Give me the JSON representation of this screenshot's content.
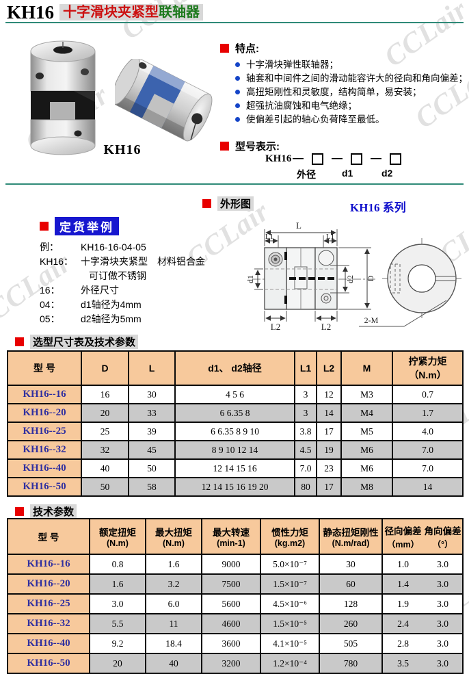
{
  "header": {
    "model": "KH16",
    "subtitle_red": "十字滑块夹紧型",
    "subtitle_green": "联轴器"
  },
  "watermark": {
    "text": "CCLair"
  },
  "product": {
    "caption": "KH16"
  },
  "features": {
    "heading": "特点:",
    "items": [
      "十字滑块弹性联轴器；",
      "轴套和中间件之间的滑动能容许大的径向和角向偏差；",
      "高扭矩刚性和灵敏度，结构简单，易安装；",
      "超强抗油腐蚀和电气绝缘；",
      "使偏差引起的轴心负荷降至最低。"
    ]
  },
  "model_designation": {
    "heading": "型号表示:",
    "prefix": "KH16",
    "dash": "—",
    "slots": [
      "外径",
      "d1",
      "d2"
    ]
  },
  "outline": {
    "heading": "外形图",
    "series": "KH16 系列",
    "labels": {
      "L": "L",
      "L1": "L1",
      "L2": "L2",
      "d1": "d1",
      "d2": "d2",
      "D": "D",
      "M": "2-M"
    }
  },
  "ordering": {
    "heading": "定货举例",
    "rows": [
      {
        "label": "例：",
        "value": "KH16-16-04-05"
      },
      {
        "label": "KH16：",
        "value": "十字滑块夹紧型　材料铝合金"
      },
      {
        "label": "",
        "value": "可订做不锈钢"
      },
      {
        "label": "16：",
        "value": "外径尺寸"
      },
      {
        "label": "04：",
        "value": "d1轴径为4mm"
      },
      {
        "label": "05：",
        "value": "d2轴径为5mm"
      }
    ]
  },
  "dimension_table": {
    "heading": "选型尺寸表及技术参数",
    "columns": [
      "型 号",
      "D",
      "L",
      "d1、 d2轴径",
      "L1",
      "L2",
      "M",
      "拧紧力矩（N.m）"
    ],
    "rows": [
      [
        "KH16--16",
        "16",
        "30",
        "4 5 6",
        "3",
        "12",
        "M3",
        "0.7"
      ],
      [
        "KH16--20",
        "20",
        "33",
        "6 6.35 8",
        "3",
        "14",
        "M4",
        "1.7"
      ],
      [
        "KH16--25",
        "25",
        "39",
        "6 6.35 8 9 10",
        "3.8",
        "17",
        "M5",
        "4.0"
      ],
      [
        "KH16--32",
        "32",
        "45",
        "8 9 10 12 14",
        "4.5",
        "19",
        "M6",
        "7.0"
      ],
      [
        "KH16--40",
        "40",
        "50",
        "12 14 15 16",
        "7.0",
        "23",
        "M6",
        "7.0"
      ],
      [
        "KH16--50",
        "50",
        "58",
        "12 14 15 16 19 20",
        "80",
        "17",
        "M8",
        "14"
      ]
    ]
  },
  "tech_table": {
    "heading": "技术参数",
    "columns": [
      {
        "name": "型 号",
        "unit": ""
      },
      {
        "name": "额定扭矩",
        "unit": "(N.m)"
      },
      {
        "name": "最大扭矩",
        "unit": "(N.m)"
      },
      {
        "name": "最大转速",
        "unit": "(min-1)"
      },
      {
        "name": "惯性力矩",
        "unit": "(kg.m2)"
      },
      {
        "name": "静态扭矩刚性",
        "unit": "(N.m/rad)"
      },
      {
        "name": "径向偏差",
        "unit": "（mm）"
      },
      {
        "name": "角向偏差",
        "unit": "（°）"
      }
    ],
    "rows": [
      [
        "KH16--16",
        "0.8",
        "1.6",
        "9000",
        "5.0×10⁻⁷",
        "30",
        "1.0",
        "3.0"
      ],
      [
        "KH16--20",
        "1.6",
        "3.2",
        "7500",
        "1.5×10⁻⁷",
        "60",
        "1.4",
        "3.0"
      ],
      [
        "KH16--25",
        "3.0",
        "6.0",
        "5600",
        "4.5×10⁻⁶",
        "128",
        "1.9",
        "3.0"
      ],
      [
        "KH16--32",
        "5.5",
        "11",
        "4600",
        "1.5×10⁻⁵",
        "260",
        "2.4",
        "3.0"
      ],
      [
        "KH16--40",
        "9.2",
        "18.4",
        "3600",
        "4.1×10⁻⁵",
        "505",
        "2.8",
        "3.0"
      ],
      [
        "KH16--50",
        "20",
        "40",
        "3200",
        "1.2×10⁻⁴",
        "780",
        "3.5",
        "3.0"
      ]
    ]
  },
  "colors": {
    "accent_red": "#e80000",
    "title_red": "#cc1111",
    "title_green": "#1e7a1e",
    "highlight_blue": "#1717cf",
    "series_blue": "#1111cc",
    "rule_teal": "#2f8a78",
    "table_header_bg": "#f7c99c",
    "row_alt_bg": "#c9c9c9",
    "model_text": "#2e2ea0"
  }
}
